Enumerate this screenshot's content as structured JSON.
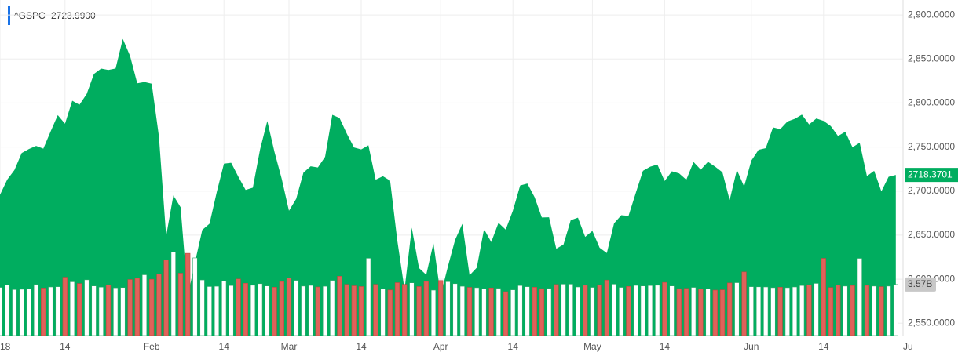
{
  "chart_data": {
    "type": "area",
    "legend_name": "^GSPC",
    "legend_value": "2723.9900",
    "legend_color": "#1a73e8",
    "last_label": "2718.3701",
    "volume_label": "3.57B",
    "series": [
      {
        "color": "#00ad5f",
        "values": [
          2695.81,
          2713.06,
          2723.99,
          2743.15,
          2747.71,
          2751.29,
          2748.23,
          2767.56,
          2786.24,
          2776.42,
          2802.56,
          2798.03,
          2810.3,
          2832.97,
          2839.13,
          2837.54,
          2839.25,
          2872.87,
          2853.53,
          2822.43,
          2823.81,
          2821.98,
          2762.13,
          2648.94,
          2695.14,
          2681.66,
          2581.0,
          2619.55,
          2656.0,
          2662.94,
          2698.63,
          2731.2,
          2732.22,
          2716.26,
          2701.33,
          2703.96,
          2747.3,
          2779.6,
          2744.28,
          2713.83,
          2677.67,
          2691.25,
          2720.94,
          2728.12,
          2726.8,
          2738.97,
          2786.57,
          2783.02,
          2765.31,
          2749.48,
          2747.33,
          2752.01,
          2712.92,
          2716.94,
          2711.93,
          2643.69,
          2588.26,
          2658.55,
          2612.62,
          2605.0,
          2640.87,
          2581.88,
          2614.45,
          2644.69,
          2662.84,
          2604.47,
          2613.16,
          2656.87,
          2642.19,
          2663.99,
          2656.3,
          2677.84,
          2706.39,
          2708.64,
          2693.13,
          2670.14,
          2670.29,
          2634.56,
          2639.4,
          2666.94,
          2669.91,
          2648.05,
          2654.8,
          2635.67,
          2629.73,
          2663.42,
          2672.63,
          2671.92,
          2697.79,
          2723.07,
          2727.72,
          2730.13,
          2711.45,
          2722.46,
          2720.13,
          2712.97,
          2733.01,
          2724.44,
          2733.29,
          2727.76,
          2721.33,
          2689.86,
          2724.01,
          2705.27,
          2734.62,
          2746.87,
          2748.8,
          2772.35,
          2770.37,
          2779.03,
          2782.0,
          2786.85,
          2775.63,
          2782.49,
          2779.66,
          2773.75,
          2762.59,
          2767.32,
          2749.76,
          2754.88,
          2717.07,
          2723.06,
          2699.63,
          2716.31,
          2718.37
        ]
      }
    ],
    "volume": {
      "axis": "y2",
      "up_color": "#ffffff",
      "down_color": "#e0625a",
      "values": [
        3.37,
        3.54,
        3.22,
        3.24,
        3.25,
        3.57,
        3.32,
        3.4,
        3.42,
        4.08,
        3.76,
        3.64,
        3.9,
        3.47,
        3.39,
        3.55,
        3.34,
        3.36,
        3.92,
        4.01,
        4.25,
        3.94,
        4.29,
        5.28,
        5.84,
        4.36,
        5.75,
        5.43,
        3.89,
        3.43,
        3.45,
        3.82,
        3.5,
        3.96,
        3.66,
        3.52,
        3.63,
        3.47,
        3.38,
        3.78,
        4.02,
        3.86,
        3.46,
        3.51,
        3.4,
        3.45,
        3.86,
        4.15,
        3.58,
        3.48,
        3.43,
        5.41,
        3.58,
        3.25,
        3.19,
        3.7,
        3.58,
        3.69,
        3.43,
        3.79,
        3.18,
        3.85,
        3.77,
        3.63,
        3.45,
        3.37,
        3.35,
        3.28,
        3.33,
        3.31,
        3.07,
        3.2,
        3.5,
        3.42,
        3.38,
        3.28,
        3.3,
        3.57,
        3.6,
        3.6,
        3.4,
        3.52,
        3.37,
        3.55,
        3.88,
        3.6,
        3.37,
        3.44,
        3.51,
        3.47,
        3.5,
        3.52,
        3.72,
        3.47,
        3.28,
        3.3,
        3.37,
        3.25,
        3.26,
        3.18,
        3.2,
        3.68,
        3.7,
        4.45,
        3.42,
        3.41,
        3.4,
        3.35,
        3.38,
        3.35,
        3.4,
        3.5,
        3.55,
        3.65,
        5.4,
        3.36,
        3.52,
        3.46,
        3.5,
        5.4,
        3.51,
        3.46,
        3.42,
        3.46,
        3.57
      ]
    },
    "xlim": [
      0,
      125
    ],
    "xticks": [
      {
        "value": 0,
        "label": "18"
      },
      {
        "value": 9,
        "label": "14"
      },
      {
        "value": 21,
        "label": "Feb"
      },
      {
        "value": 31,
        "label": "14"
      },
      {
        "value": 40,
        "label": "Mar"
      },
      {
        "value": 50,
        "label": "14"
      },
      {
        "value": 61,
        "label": "Apr"
      },
      {
        "value": 71,
        "label": "14"
      },
      {
        "value": 82,
        "label": "May"
      },
      {
        "value": 92,
        "label": "14"
      },
      {
        "value": 104,
        "label": "Jun"
      },
      {
        "value": 114,
        "label": "14"
      },
      {
        "value": 125,
        "label": "Ju"
      }
    ],
    "ylim": [
      2536,
      2917
    ],
    "yticks": [
      {
        "value": 2550,
        "label": "2,550.0000"
      },
      {
        "value": 2600,
        "label": "2,600.0000"
      },
      {
        "value": 2650,
        "label": "2,650.0000"
      },
      {
        "value": 2700,
        "label": "2,700.0000"
      },
      {
        "value": 2750,
        "label": "2,750.0000"
      },
      {
        "value": 2800,
        "label": "2,800.0000"
      },
      {
        "value": 2850,
        "label": "2,850.0000"
      },
      {
        "value": 2900,
        "label": "2,900.0000"
      }
    ],
    "y2lim": [
      0,
      12.5
    ],
    "grid": true
  }
}
